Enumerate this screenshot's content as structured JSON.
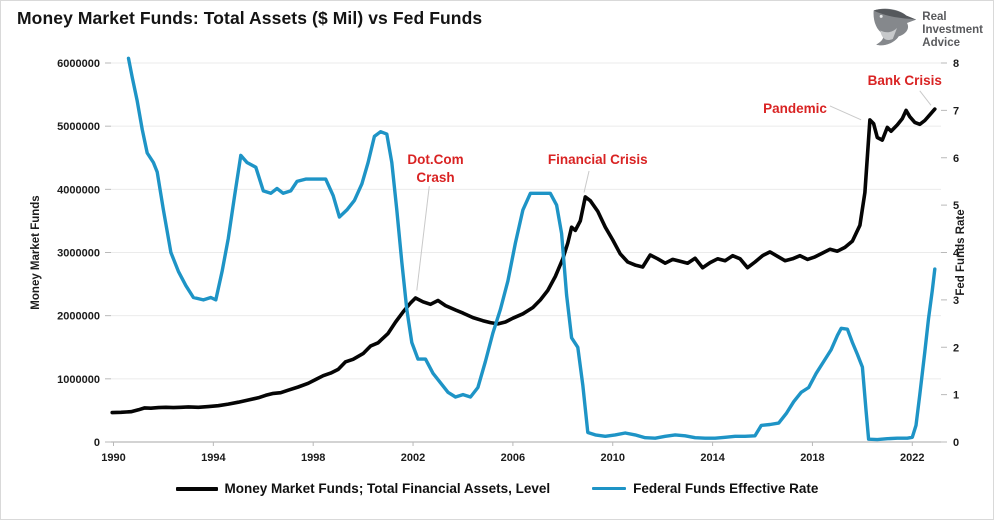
{
  "header": {
    "title": "Money Market Funds: Total Assets ($ Mil) vs Fed Funds",
    "logo": {
      "line1": "Real",
      "line2": "Investment",
      "line3": "Advice"
    }
  },
  "chart_data": {
    "type": "line",
    "title": "Money Market Funds: Total Assets ($ Mil) vs Fed Funds",
    "grid": "horizontal",
    "legend_position": "bottom-center",
    "annotation_color": "#d92323",
    "x_axis": {
      "range": [
        1989.9,
        2023.15
      ],
      "ticks": [
        1990,
        1994,
        1998,
        2002,
        2006,
        2010,
        2014,
        2018,
        2022
      ]
    },
    "left_axis": {
      "label": "Money Market Funds",
      "range": [
        0,
        6000000
      ],
      "ticks": [
        0,
        1000000,
        2000000,
        3000000,
        4000000,
        5000000,
        6000000
      ]
    },
    "right_axis": {
      "label": "Fed Funds Rate",
      "range": [
        0,
        8
      ],
      "ticks": [
        0,
        1,
        2,
        3,
        4,
        5,
        6,
        7,
        8
      ]
    },
    "series": [
      {
        "name": "Money Market Funds; Total Financial Assets, Level",
        "axis": "left",
        "color": "#050505",
        "points": [
          [
            1989.95,
            465000
          ],
          [
            1990.3,
            470000
          ],
          [
            1990.7,
            480000
          ],
          [
            1991.0,
            510000
          ],
          [
            1991.25,
            540000
          ],
          [
            1991.5,
            535000
          ],
          [
            1991.8,
            545000
          ],
          [
            1992.1,
            550000
          ],
          [
            1992.4,
            545000
          ],
          [
            1992.7,
            550000
          ],
          [
            1993.0,
            555000
          ],
          [
            1993.4,
            550000
          ],
          [
            1993.8,
            560000
          ],
          [
            1994.2,
            575000
          ],
          [
            1994.6,
            600000
          ],
          [
            1995.0,
            630000
          ],
          [
            1995.4,
            665000
          ],
          [
            1995.8,
            700000
          ],
          [
            1996.1,
            740000
          ],
          [
            1996.4,
            770000
          ],
          [
            1996.7,
            780000
          ],
          [
            1997.0,
            820000
          ],
          [
            1997.4,
            870000
          ],
          [
            1997.8,
            930000
          ],
          [
            1998.1,
            990000
          ],
          [
            1998.4,
            1050000
          ],
          [
            1998.7,
            1090000
          ],
          [
            1999.0,
            1150000
          ],
          [
            1999.3,
            1270000
          ],
          [
            1999.6,
            1310000
          ],
          [
            2000.0,
            1400000
          ],
          [
            2000.3,
            1520000
          ],
          [
            2000.6,
            1570000
          ],
          [
            2001.0,
            1720000
          ],
          [
            2001.3,
            1900000
          ],
          [
            2001.6,
            2060000
          ],
          [
            2001.9,
            2200000
          ],
          [
            2002.1,
            2280000
          ],
          [
            2002.4,
            2220000
          ],
          [
            2002.7,
            2180000
          ],
          [
            2003.0,
            2240000
          ],
          [
            2003.3,
            2160000
          ],
          [
            2003.7,
            2090000
          ],
          [
            2004.0,
            2040000
          ],
          [
            2004.4,
            1970000
          ],
          [
            2004.8,
            1920000
          ],
          [
            2005.1,
            1890000
          ],
          [
            2005.4,
            1870000
          ],
          [
            2005.7,
            1900000
          ],
          [
            2006.0,
            1960000
          ],
          [
            2006.4,
            2030000
          ],
          [
            2006.8,
            2130000
          ],
          [
            2007.1,
            2250000
          ],
          [
            2007.4,
            2400000
          ],
          [
            2007.7,
            2620000
          ],
          [
            2008.0,
            2900000
          ],
          [
            2008.2,
            3150000
          ],
          [
            2008.35,
            3400000
          ],
          [
            2008.5,
            3350000
          ],
          [
            2008.7,
            3500000
          ],
          [
            2008.9,
            3880000
          ],
          [
            2009.1,
            3820000
          ],
          [
            2009.4,
            3650000
          ],
          [
            2009.7,
            3400000
          ],
          [
            2010.0,
            3200000
          ],
          [
            2010.3,
            2980000
          ],
          [
            2010.6,
            2850000
          ],
          [
            2010.9,
            2800000
          ],
          [
            2011.2,
            2770000
          ],
          [
            2011.5,
            2960000
          ],
          [
            2011.8,
            2900000
          ],
          [
            2012.1,
            2830000
          ],
          [
            2012.4,
            2890000
          ],
          [
            2012.7,
            2860000
          ],
          [
            2013.0,
            2830000
          ],
          [
            2013.3,
            2910000
          ],
          [
            2013.6,
            2760000
          ],
          [
            2013.9,
            2840000
          ],
          [
            2014.2,
            2900000
          ],
          [
            2014.5,
            2870000
          ],
          [
            2014.8,
            2950000
          ],
          [
            2015.1,
            2900000
          ],
          [
            2015.4,
            2760000
          ],
          [
            2015.7,
            2850000
          ],
          [
            2016.0,
            2950000
          ],
          [
            2016.3,
            3010000
          ],
          [
            2016.6,
            2940000
          ],
          [
            2016.9,
            2870000
          ],
          [
            2017.2,
            2900000
          ],
          [
            2017.5,
            2950000
          ],
          [
            2017.8,
            2890000
          ],
          [
            2018.1,
            2930000
          ],
          [
            2018.4,
            2990000
          ],
          [
            2018.7,
            3050000
          ],
          [
            2019.0,
            3020000
          ],
          [
            2019.3,
            3080000
          ],
          [
            2019.6,
            3180000
          ],
          [
            2019.9,
            3430000
          ],
          [
            2020.1,
            3950000
          ],
          [
            2020.3,
            5100000
          ],
          [
            2020.45,
            5040000
          ],
          [
            2020.6,
            4820000
          ],
          [
            2020.8,
            4780000
          ],
          [
            2021.0,
            4980000
          ],
          [
            2021.15,
            4920000
          ],
          [
            2021.4,
            5020000
          ],
          [
            2021.6,
            5120000
          ],
          [
            2021.75,
            5250000
          ],
          [
            2021.9,
            5150000
          ],
          [
            2022.1,
            5060000
          ],
          [
            2022.3,
            5030000
          ],
          [
            2022.5,
            5090000
          ],
          [
            2022.7,
            5180000
          ],
          [
            2022.9,
            5270000
          ]
        ]
      },
      {
        "name": "Federal Funds Effective Rate",
        "axis": "right",
        "color": "#1e94c6",
        "points": [
          [
            1990.6,
            8.1
          ],
          [
            1990.75,
            7.7
          ],
          [
            1990.95,
            7.2
          ],
          [
            1991.15,
            6.6
          ],
          [
            1991.35,
            6.1
          ],
          [
            1991.6,
            5.9
          ],
          [
            1991.75,
            5.7
          ],
          [
            1992.0,
            4.9
          ],
          [
            1992.3,
            4.0
          ],
          [
            1992.6,
            3.6
          ],
          [
            1992.9,
            3.3
          ],
          [
            1993.2,
            3.05
          ],
          [
            1993.6,
            3.0
          ],
          [
            1993.9,
            3.05
          ],
          [
            1994.1,
            3.0
          ],
          [
            1994.35,
            3.6
          ],
          [
            1994.6,
            4.3
          ],
          [
            1994.85,
            5.2
          ],
          [
            1995.1,
            6.05
          ],
          [
            1995.35,
            5.9
          ],
          [
            1995.7,
            5.8
          ],
          [
            1996.0,
            5.3
          ],
          [
            1996.3,
            5.25
          ],
          [
            1996.55,
            5.35
          ],
          [
            1996.8,
            5.25
          ],
          [
            1997.1,
            5.3
          ],
          [
            1997.35,
            5.5
          ],
          [
            1997.7,
            5.55
          ],
          [
            1998.1,
            5.55
          ],
          [
            1998.5,
            5.55
          ],
          [
            1998.8,
            5.2
          ],
          [
            1999.05,
            4.75
          ],
          [
            1999.35,
            4.9
          ],
          [
            1999.65,
            5.1
          ],
          [
            1999.95,
            5.45
          ],
          [
            2000.2,
            5.9
          ],
          [
            2000.45,
            6.45
          ],
          [
            2000.7,
            6.55
          ],
          [
            2000.95,
            6.5
          ],
          [
            2001.15,
            5.9
          ],
          [
            2001.35,
            4.9
          ],
          [
            2001.55,
            3.8
          ],
          [
            2001.75,
            2.8
          ],
          [
            2001.95,
            2.1
          ],
          [
            2002.2,
            1.75
          ],
          [
            2002.5,
            1.75
          ],
          [
            2002.8,
            1.45
          ],
          [
            2003.1,
            1.25
          ],
          [
            2003.4,
            1.05
          ],
          [
            2003.7,
            0.95
          ],
          [
            2004.0,
            1.0
          ],
          [
            2004.3,
            0.95
          ],
          [
            2004.6,
            1.15
          ],
          [
            2004.9,
            1.7
          ],
          [
            2005.2,
            2.3
          ],
          [
            2005.5,
            2.8
          ],
          [
            2005.8,
            3.4
          ],
          [
            2006.1,
            4.2
          ],
          [
            2006.4,
            4.9
          ],
          [
            2006.7,
            5.25
          ],
          [
            2007.1,
            5.25
          ],
          [
            2007.5,
            5.25
          ],
          [
            2007.75,
            5.0
          ],
          [
            2007.95,
            4.4
          ],
          [
            2008.15,
            3.1
          ],
          [
            2008.35,
            2.2
          ],
          [
            2008.6,
            2.0
          ],
          [
            2008.8,
            1.2
          ],
          [
            2009.0,
            0.2
          ],
          [
            2009.3,
            0.15
          ],
          [
            2009.7,
            0.12
          ],
          [
            2010.1,
            0.15
          ],
          [
            2010.5,
            0.19
          ],
          [
            2010.9,
            0.15
          ],
          [
            2011.3,
            0.09
          ],
          [
            2011.7,
            0.08
          ],
          [
            2012.1,
            0.12
          ],
          [
            2012.5,
            0.15
          ],
          [
            2012.9,
            0.13
          ],
          [
            2013.3,
            0.09
          ],
          [
            2013.7,
            0.08
          ],
          [
            2014.1,
            0.08
          ],
          [
            2014.5,
            0.1
          ],
          [
            2014.9,
            0.12
          ],
          [
            2015.3,
            0.12
          ],
          [
            2015.7,
            0.13
          ],
          [
            2015.95,
            0.35
          ],
          [
            2016.3,
            0.37
          ],
          [
            2016.65,
            0.4
          ],
          [
            2016.95,
            0.6
          ],
          [
            2017.25,
            0.85
          ],
          [
            2017.55,
            1.05
          ],
          [
            2017.85,
            1.15
          ],
          [
            2018.15,
            1.45
          ],
          [
            2018.45,
            1.7
          ],
          [
            2018.75,
            1.95
          ],
          [
            2019.0,
            2.25
          ],
          [
            2019.15,
            2.4
          ],
          [
            2019.4,
            2.38
          ],
          [
            2019.6,
            2.1
          ],
          [
            2019.8,
            1.85
          ],
          [
            2020.0,
            1.58
          ],
          [
            2020.15,
            0.65
          ],
          [
            2020.25,
            0.06
          ],
          [
            2020.6,
            0.05
          ],
          [
            2021.0,
            0.07
          ],
          [
            2021.4,
            0.08
          ],
          [
            2021.8,
            0.08
          ],
          [
            2022.0,
            0.1
          ],
          [
            2022.15,
            0.35
          ],
          [
            2022.3,
            1.0
          ],
          [
            2022.5,
            1.9
          ],
          [
            2022.65,
            2.6
          ],
          [
            2022.8,
            3.2
          ],
          [
            2022.9,
            3.65
          ]
        ]
      }
    ],
    "annotations": [
      {
        "lines": [
          "Dot.Com",
          "Crash"
        ],
        "x": 2002.9,
        "y": 4400000,
        "leader": {
          "x1": 2002.65,
          "y1": 4050000,
          "x2": 2002.15,
          "y2": 2400000
        }
      },
      {
        "lines": [
          "Financial Crisis"
        ],
        "x": 2009.4,
        "y": 4400000,
        "leader": {
          "x1": 2009.05,
          "y1": 4290000,
          "x2": 2008.85,
          "y2": 3950000
        }
      },
      {
        "lines": [
          "Pandemic"
        ],
        "x": 2017.3,
        "y": 5210000,
        "leader": {
          "x1": 2018.7,
          "y1": 5320000,
          "x2": 2019.95,
          "y2": 5100000
        }
      },
      {
        "lines": [
          "Bank Crisis"
        ],
        "x": 2021.7,
        "y": 5650000,
        "leader": {
          "x1": 2022.3,
          "y1": 5560000,
          "x2": 2022.75,
          "y2": 5330000
        }
      }
    ]
  }
}
